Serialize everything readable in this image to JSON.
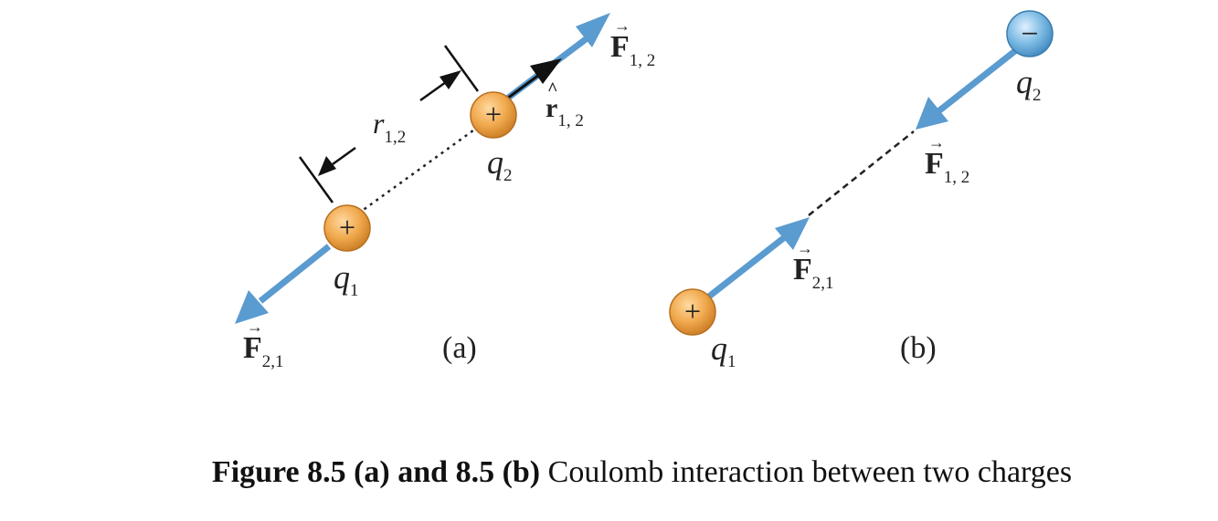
{
  "panel_a": {
    "label": "(a)",
    "charge1": {
      "name": "q",
      "sub": "1",
      "sign": "+"
    },
    "charge2": {
      "name": "q",
      "sub": "2",
      "sign": "+"
    },
    "force12": {
      "name": "F",
      "sub": "1, 2"
    },
    "force21": {
      "name": "F",
      "sub": "2,1"
    },
    "unit_vector": {
      "name": "r",
      "sub": "1, 2"
    },
    "distance": {
      "name": "r",
      "sub": "1,2"
    }
  },
  "panel_b": {
    "label": "(b)",
    "charge1": {
      "name": "q",
      "sub": "1",
      "sign": "+"
    },
    "charge2": {
      "name": "q",
      "sub": "2",
      "sign": "−"
    },
    "force12": {
      "name": "F",
      "sub": "1, 2"
    },
    "force21": {
      "name": "F",
      "sub": "2,1"
    }
  },
  "caption": {
    "bold": "Figure 8.5 (a) and 8.5 (b)",
    "text": " Coulomb interaction between two charges"
  },
  "colors": {
    "force_arrow": "#5a9bd0",
    "positive_charge": "#e9a24a",
    "negative_charge": "#6fb3e0",
    "dashed_line": "#222222"
  }
}
